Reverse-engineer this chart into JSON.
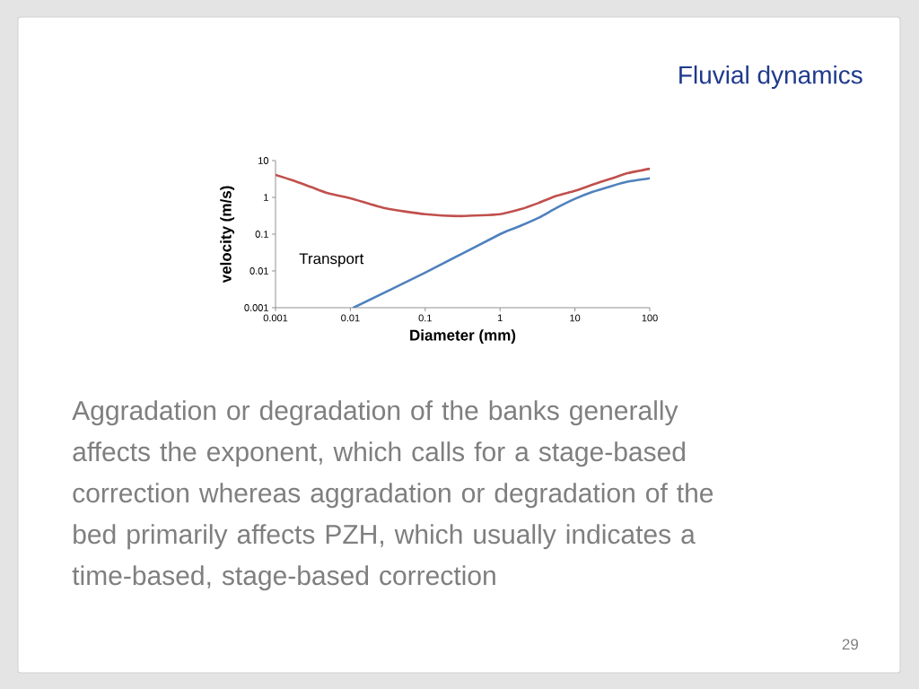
{
  "chart_data": {
    "type": "line",
    "title": "Fluvial dynamics",
    "xlabel": "Diameter (mm)",
    "ylabel": "velocity (m/s)",
    "log": "xy",
    "xlim": [
      0.001,
      100
    ],
    "ylim": [
      0.001,
      10
    ],
    "xticks": [
      0.001,
      0.01,
      0.1,
      1,
      10,
      100
    ],
    "yticks": [
      0.001,
      0.01,
      0.1,
      1,
      10
    ],
    "series": [
      {
        "color": "#c0504d",
        "x": [
          0.001,
          0.0017,
          0.003,
          0.005,
          0.01,
          0.03,
          0.1,
          0.3,
          1,
          1.9,
          3.3,
          5.7,
          10,
          17,
          30,
          52,
          100
        ],
        "values": [
          4.1,
          2.9,
          1.9,
          1.3,
          0.95,
          0.5,
          0.35,
          0.31,
          0.35,
          0.48,
          0.71,
          1.1,
          1.5,
          2.2,
          3.2,
          4.6,
          6.0
        ]
      },
      {
        "color": "#4f81bd",
        "x": [
          0.011,
          0.1,
          1,
          1.9,
          3.3,
          5.7,
          10,
          17,
          30,
          52,
          100
        ],
        "values": [
          0.001,
          0.009,
          0.1,
          0.17,
          0.28,
          0.52,
          0.91,
          1.4,
          2.0,
          2.7,
          3.3
        ]
      }
    ],
    "annotations": [
      "Transport",
      "Aggradation or degradation of the banks generally affects the exponent, which calls for a stage-based correction whereas aggradation or degradation of the bed primarily affects PZH, which usually indicates a time-based, stage-based correction",
      "29"
    ]
  }
}
